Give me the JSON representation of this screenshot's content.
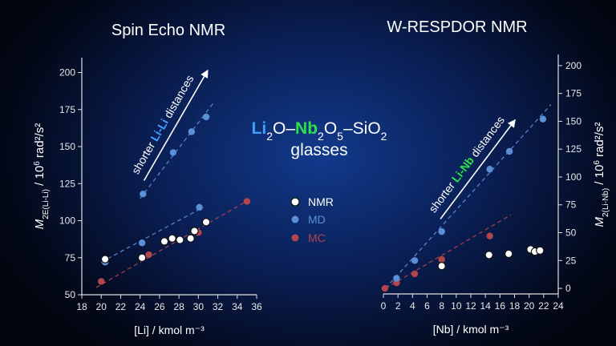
{
  "colors": {
    "nmr": "#ffffff",
    "md": "#5b8fd6",
    "mc": "#b0454c",
    "li": "#3fa0ff",
    "nb": "#2fe04a",
    "axis": "#e0e0e0"
  },
  "center": {
    "formula": {
      "li": "Li",
      "sub2a": "2",
      "o1": "O–",
      "nb": "Nb",
      "sub2b": "2",
      "o5": "O",
      "sub5": "5",
      "rest": "–SiO",
      "sub2c": "2"
    },
    "line2": "glasses"
  },
  "legend": [
    {
      "key": "nmr",
      "label": "NMR"
    },
    {
      "key": "md",
      "label": "MD"
    },
    {
      "key": "mc",
      "label": "MC"
    }
  ],
  "left_arrow": {
    "prefix": "shorter ",
    "highlight": "Li-Li",
    "suffix": " distances"
  },
  "right_arrow": {
    "prefix": "shorter ",
    "highlight": "Li-Nb",
    "suffix": " distances"
  },
  "chart_data": [
    {
      "type": "scatter",
      "title": "Spin Echo NMR",
      "xlabel": "[Li] / kmol m⁻³",
      "ylabel_main": "M",
      "ylabel_sub": "2E(Li-Li)",
      "ylabel_rest": " / 10",
      "ylabel_exp": "6",
      "ylabel_unit": " rad²/s²",
      "xlim": [
        18,
        36
      ],
      "ylim": [
        50,
        210
      ],
      "xticks": [
        18,
        20,
        22,
        24,
        26,
        28,
        30,
        32,
        34,
        36
      ],
      "yticks": [
        50,
        75,
        100,
        125,
        150,
        175,
        200
      ],
      "series": [
        {
          "name": "NMR",
          "x": [
            20.4,
            24.2,
            26.5,
            27.3,
            28.1,
            29.2,
            29.6,
            30.8
          ],
          "y": [
            74,
            75,
            86,
            88,
            87,
            88,
            93,
            99
          ]
        },
        {
          "name": "MD",
          "x": [
            20.4,
            24.2,
            24.3,
            27.4,
            29.3,
            30.1,
            30.8
          ],
          "y": [
            72,
            85,
            118,
            146,
            160,
            109,
            170
          ]
        },
        {
          "name": "MC",
          "x": [
            20.0,
            24.9,
            30.0,
            35.0
          ],
          "y": [
            59,
            77,
            92,
            113
          ]
        }
      ],
      "fits": [
        {
          "series": "MD",
          "x": [
            20.0,
            30.5
          ],
          "y": [
            72,
            109
          ]
        },
        {
          "series": "MD",
          "x": [
            24.0,
            31.5
          ],
          "y": [
            115,
            179
          ]
        },
        {
          "series": "MC",
          "x": [
            19.5,
            35.2
          ],
          "y": [
            55,
            114
          ]
        }
      ]
    },
    {
      "type": "scatter",
      "title": "W-RESPDOR NMR",
      "xlabel": "[Nb] / kmol m⁻³",
      "ylabel_main": "M",
      "ylabel_sub": "2(Li-Nb)",
      "ylabel_rest": " / 10",
      "ylabel_exp": "6",
      "ylabel_unit": " rad²/s²",
      "xlim": [
        0,
        24
      ],
      "ylim": [
        -5,
        210
      ],
      "xticks": [
        0,
        2,
        4,
        6,
        8,
        10,
        12,
        14,
        16,
        18,
        20,
        22,
        24
      ],
      "yticks": [
        0,
        25,
        50,
        75,
        100,
        125,
        150,
        175,
        200
      ],
      "series": [
        {
          "name": "NMR",
          "x": [
            8.0,
            14.5,
            17.2,
            20.2,
            20.8,
            21.5
          ],
          "y": [
            20,
            30,
            31,
            35,
            33,
            34
          ]
        },
        {
          "name": "MD",
          "x": [
            1.8,
            4.3,
            8.0,
            14.6,
            17.3,
            21.9
          ],
          "y": [
            9,
            25,
            51,
            107,
            123,
            152
          ]
        },
        {
          "name": "MC",
          "x": [
            0.2,
            1.8,
            4.3,
            8.0,
            14.6
          ],
          "y": [
            0,
            5,
            13,
            26,
            47
          ]
        }
      ],
      "fits": [
        {
          "series": "MD",
          "x": [
            0.3,
            23.0
          ],
          "y": [
            0,
            165
          ]
        },
        {
          "series": "MC",
          "x": [
            0.3,
            17.5
          ],
          "y": [
            0,
            66
          ]
        }
      ]
    }
  ]
}
